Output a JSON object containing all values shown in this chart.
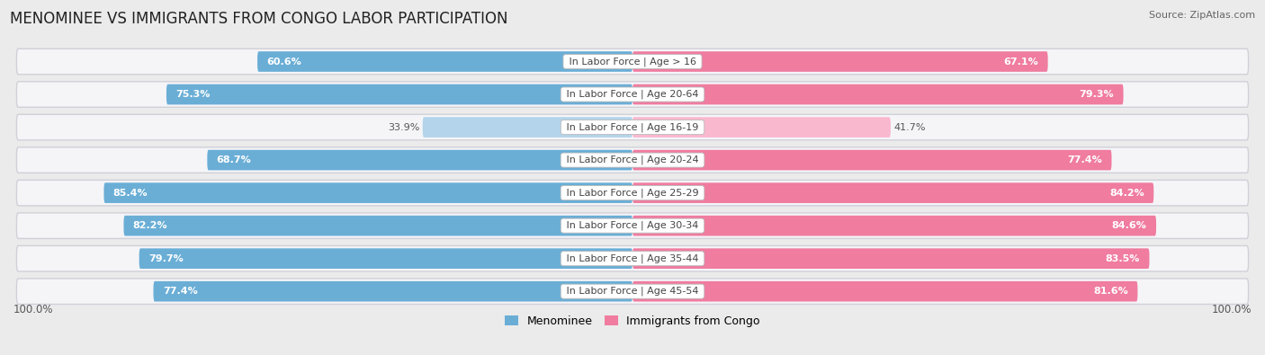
{
  "title": "MENOMINEE VS IMMIGRANTS FROM CONGO LABOR PARTICIPATION",
  "source": "Source: ZipAtlas.com",
  "categories": [
    "In Labor Force | Age > 16",
    "In Labor Force | Age 20-64",
    "In Labor Force | Age 16-19",
    "In Labor Force | Age 20-24",
    "In Labor Force | Age 25-29",
    "In Labor Force | Age 30-34",
    "In Labor Force | Age 35-44",
    "In Labor Force | Age 45-54"
  ],
  "menominee_values": [
    60.6,
    75.3,
    33.9,
    68.7,
    85.4,
    82.2,
    79.7,
    77.4
  ],
  "congo_values": [
    67.1,
    79.3,
    41.7,
    77.4,
    84.2,
    84.6,
    83.5,
    81.6
  ],
  "menominee_color": "#6aaed6",
  "congo_color": "#f07ca0",
  "menominee_color_light": "#b3d4ea",
  "congo_color_light": "#f9b8ce",
  "row_bg_color": "#e8e8ec",
  "row_inner_color": "#f5f5f8",
  "background_color": "#ebebeb",
  "title_fontsize": 12,
  "label_fontsize": 8,
  "value_fontsize": 8,
  "axis_max": 100.0,
  "bar_height": 0.62,
  "legend_menominee": "Menominee",
  "legend_congo": "Immigrants from Congo"
}
